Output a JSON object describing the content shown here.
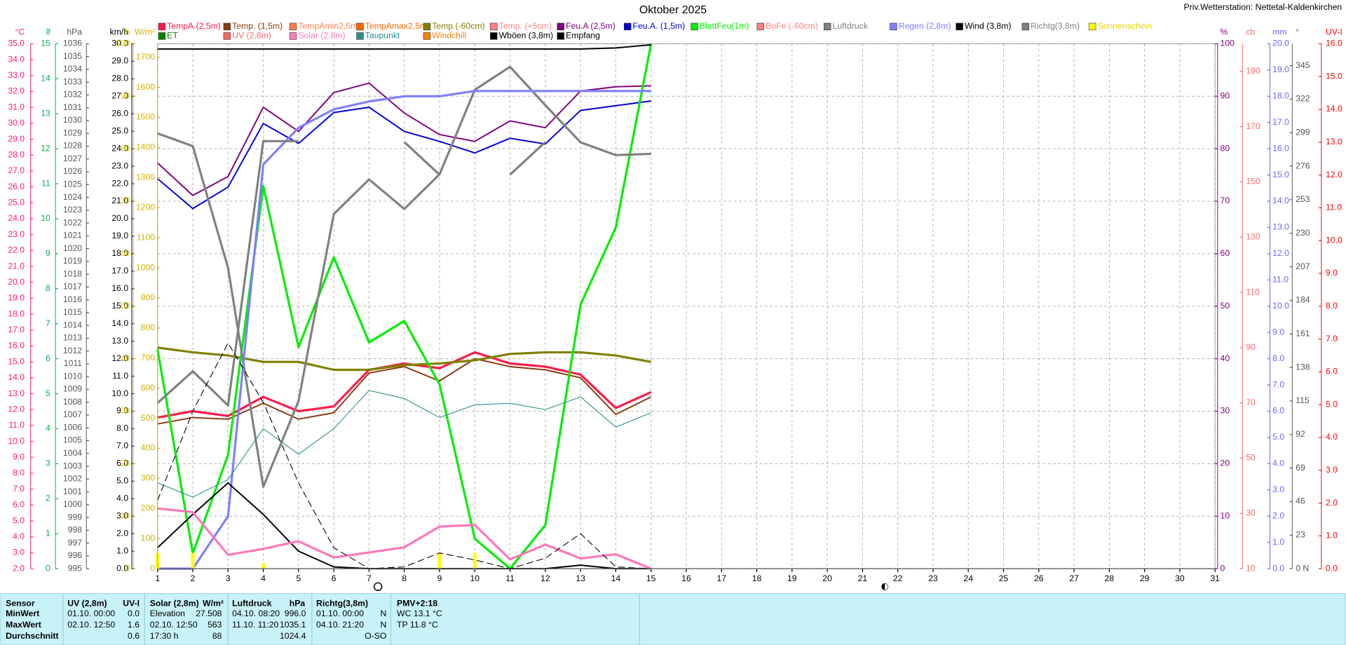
{
  "chart_data": {
    "type": "line",
    "title": "Oktober 2025",
    "station": "Priv.Wetterstation: Nettetal-Kaldenkirchen",
    "x": [
      1,
      2,
      3,
      4,
      5,
      6,
      7,
      8,
      9,
      10,
      11,
      12,
      13,
      14,
      15
    ],
    "xlim": [
      1,
      31
    ],
    "xticks": [
      1,
      2,
      3,
      4,
      5,
      6,
      7,
      8,
      9,
      10,
      11,
      12,
      13,
      14,
      15,
      16,
      17,
      18,
      19,
      20,
      21,
      22,
      23,
      24,
      25,
      26,
      27,
      28,
      29,
      30,
      31
    ],
    "grid": true,
    "axes": [
      {
        "unit": "°C",
        "side": "left",
        "color": "#ff1a75",
        "ylim": [
          2,
          35
        ],
        "ticks": [
          {
            "value": 2,
            "label": "2.0"
          },
          {
            "value": 3,
            "label": "3.0"
          },
          {
            "value": 4,
            "label": "4.0"
          },
          {
            "value": 5,
            "label": "5.0"
          },
          {
            "value": 6,
            "label": "6.0"
          },
          {
            "value": 7,
            "label": "7.0"
          },
          {
            "value": 8,
            "label": "8.0"
          },
          {
            "value": 9,
            "label": "9.0"
          },
          {
            "value": 10,
            "label": "10.0"
          },
          {
            "value": 11,
            "label": "11.0"
          },
          {
            "value": 12,
            "label": "12.0"
          },
          {
            "value": 13,
            "label": "13.0"
          },
          {
            "value": 14,
            "label": "14.0"
          },
          {
            "value": 15,
            "label": "15.0"
          },
          {
            "value": 16,
            "label": "16.0"
          },
          {
            "value": 17,
            "label": "17.0"
          },
          {
            "value": 18,
            "label": "18.0"
          },
          {
            "value": 19,
            "label": "19.0"
          },
          {
            "value": 20,
            "label": "20.0"
          },
          {
            "value": 21,
            "label": "21.0"
          },
          {
            "value": 22,
            "label": "22.0"
          },
          {
            "value": 23,
            "label": "23.0"
          },
          {
            "value": 24,
            "label": "24.0"
          },
          {
            "value": 25,
            "label": "25.0"
          },
          {
            "value": 26,
            "label": "26.0"
          },
          {
            "value": 27,
            "label": "27.0"
          },
          {
            "value": 28,
            "label": "28.0"
          },
          {
            "value": 29,
            "label": "29.0"
          },
          {
            "value": 30,
            "label": "30.0"
          },
          {
            "value": 31,
            "label": "31.0"
          },
          {
            "value": 32,
            "label": "32.0"
          },
          {
            "value": 33,
            "label": "33.0"
          },
          {
            "value": 34,
            "label": "34.0"
          },
          {
            "value": 35,
            "label": "35.0"
          }
        ]
      },
      {
        "unit": "lf",
        "side": "left",
        "color": "#00b050",
        "ylim": [
          0,
          15
        ],
        "ticks": [
          0,
          1,
          2,
          3,
          4,
          5,
          6,
          7,
          8,
          9,
          10,
          11,
          12,
          13,
          14,
          15
        ]
      },
      {
        "unit": "hPa",
        "side": "left",
        "color": "#555555",
        "ylim": [
          995,
          1036
        ],
        "ticks": [
          995,
          996,
          997,
          998,
          999,
          1000,
          1001,
          1002,
          1003,
          1004,
          1005,
          1006,
          1007,
          1008,
          1009,
          1010,
          1011,
          1012,
          1013,
          1014,
          1015,
          1016,
          1017,
          1018,
          1019,
          1020,
          1021,
          1022,
          1023,
          1024,
          1025,
          1026,
          1027,
          1028,
          1029,
          1030,
          1031,
          1032,
          1033,
          1034,
          1035,
          1036
        ]
      },
      {
        "unit": "km/h",
        "side": "left",
        "color": "#000000",
        "ylim": [
          0,
          30
        ],
        "ticks": [
          {
            "value": 0,
            "label": "0.0"
          },
          {
            "value": 1,
            "label": "1.0"
          },
          {
            "value": 2,
            "label": "2.0"
          },
          {
            "value": 3,
            "label": "3.0"
          },
          {
            "value": 4,
            "label": "4.0"
          },
          {
            "value": 5,
            "label": "5.0"
          },
          {
            "value": 6,
            "label": "6.0"
          },
          {
            "value": 7,
            "label": "7.0"
          },
          {
            "value": 8,
            "label": "8.0"
          },
          {
            "value": 9,
            "label": "9.0"
          },
          {
            "value": 10,
            "label": "10.0"
          },
          {
            "value": 11,
            "label": "11.0"
          },
          {
            "value": 12,
            "label": "12.0"
          },
          {
            "value": 13,
            "label": "13.0"
          },
          {
            "value": 14,
            "label": "14.0"
          },
          {
            "value": 15,
            "label": "15.0"
          },
          {
            "value": 16,
            "label": "16.0"
          },
          {
            "value": 17,
            "label": "17.0"
          },
          {
            "value": 18,
            "label": "18.0"
          },
          {
            "value": 19,
            "label": "19.0"
          },
          {
            "value": 20,
            "label": "20.0"
          },
          {
            "value": 21,
            "label": "21.0"
          },
          {
            "value": 22,
            "label": "22.0"
          },
          {
            "value": 23,
            "label": "23.0"
          },
          {
            "value": 24,
            "label": "24.0"
          },
          {
            "value": 25,
            "label": "25.0"
          },
          {
            "value": 26,
            "label": "26.0"
          },
          {
            "value": 27,
            "label": "27.0"
          },
          {
            "value": 28,
            "label": "28.0"
          },
          {
            "value": 29,
            "label": "29.0"
          },
          {
            "value": 30,
            "label": "30.0"
          }
        ]
      },
      {
        "unit": "h",
        "side": "left",
        "color": "#e6d200",
        "ylim": [
          0,
          100
        ],
        "ticks": [
          0,
          10,
          20,
          30,
          40,
          50,
          60,
          70,
          80,
          90,
          100
        ]
      },
      {
        "unit": "W/m²",
        "side": "left",
        "color": "#d4b000",
        "ylim": [
          0,
          1745
        ],
        "ticks": [
          0,
          100,
          200,
          300,
          400,
          500,
          600,
          700,
          800,
          900,
          1000,
          1100,
          1200,
          1300,
          1400,
          1500,
          1600,
          1700
        ]
      },
      {
        "unit": "%",
        "side": "right",
        "color": "#800080",
        "ylim": [
          0,
          100
        ],
        "ticks": [
          0,
          10,
          20,
          30,
          40,
          50,
          60,
          70,
          80,
          90,
          100
        ]
      },
      {
        "unit": "cb",
        "side": "right",
        "color": "#ff6666",
        "ylim": [
          10,
          200
        ],
        "ticks": [
          10,
          30,
          50,
          70,
          90,
          110,
          130,
          150,
          170,
          190
        ]
      },
      {
        "unit": "mm",
        "side": "right",
        "color": "#6666ff",
        "ylim": [
          0,
          20
        ],
        "ticks": [
          {
            "value": 0,
            "label": "0.0"
          },
          {
            "value": 1,
            "label": "1.0"
          },
          {
            "value": 2,
            "label": "2.0"
          },
          {
            "value": 3,
            "label": "3.0"
          },
          {
            "value": 4,
            "label": "4.0"
          },
          {
            "value": 5,
            "label": "5.0"
          },
          {
            "value": 6,
            "label": "6.0"
          },
          {
            "value": 7,
            "label": "7.0"
          },
          {
            "value": 8,
            "label": "8.0"
          },
          {
            "value": 9,
            "label": "9.0"
          },
          {
            "value": 10,
            "label": "10.0"
          },
          {
            "value": 11,
            "label": "11.0"
          },
          {
            "value": 12,
            "label": "12.0"
          },
          {
            "value": 13,
            "label": "13.0"
          },
          {
            "value": 14,
            "label": "14.0"
          },
          {
            "value": 15,
            "label": "15.0"
          },
          {
            "value": 16,
            "label": "16.0"
          },
          {
            "value": 17,
            "label": "17.0"
          },
          {
            "value": 18,
            "label": "18.0"
          },
          {
            "value": 19,
            "label": "19.0"
          },
          {
            "value": 20,
            "label": "20.0"
          }
        ]
      },
      {
        "unit": "°",
        "side": "right",
        "color": "#555555",
        "ylim": [
          0,
          360
        ],
        "ticks": [
          {
            "value": 0,
            "label": "0  N"
          },
          23,
          46,
          69,
          92,
          115,
          138,
          161,
          184,
          207,
          230,
          253,
          276,
          299,
          322,
          345
        ]
      },
      {
        "unit": "UV-I",
        "side": "right",
        "color": "#ff0000",
        "ylim": [
          0,
          16
        ],
        "ticks": [
          {
            "value": 0,
            "label": "0.0"
          },
          {
            "value": 1,
            "label": "1.0"
          },
          {
            "value": 2,
            "label": "2.0"
          },
          {
            "value": 3,
            "label": "3.0"
          },
          {
            "value": 4,
            "label": "4.0"
          },
          {
            "value": 5,
            "label": "5.0"
          },
          {
            "value": 6,
            "label": "6.0"
          },
          {
            "value": 7,
            "label": "7.0"
          },
          {
            "value": 8,
            "label": "8.0"
          },
          {
            "value": 9,
            "label": "9.0"
          },
          {
            "value": 10,
            "label": "10.0"
          },
          {
            "value": 11,
            "label": "11.0"
          },
          {
            "value": 12,
            "label": "12.0"
          },
          {
            "value": 13,
            "label": "13.0"
          },
          {
            "value": 14,
            "label": "14.0"
          },
          {
            "value": 15,
            "label": "15.0"
          },
          {
            "value": 16,
            "label": "16.0"
          }
        ]
      }
    ],
    "series": [
      {
        "name": "TempA.(2,5m)",
        "color": "#ff1a4b",
        "axis": 0,
        "style": "thick",
        "values": [
          11.5,
          11.9,
          11.6,
          12.8,
          11.9,
          12.2,
          14.5,
          14.9,
          14.6,
          15.6,
          14.9,
          14.7,
          14.2,
          12.1,
          13.1
        ]
      },
      {
        "name": "Temp. (1,5m)",
        "color": "#8b3a0e",
        "axis": 0,
        "style": "normal",
        "values": [
          11.1,
          11.5,
          11.4,
          12.4,
          11.4,
          11.8,
          14.3,
          14.7,
          13.8,
          15.2,
          14.7,
          14.5,
          14.0,
          11.7,
          12.8
        ]
      },
      {
        "name": "TempAmin2,5m",
        "color": "#ff7f50"
      },
      {
        "name": "TempAmax2,5m",
        "color": "#ff6600"
      },
      {
        "name": "Temp.(-60cm)",
        "color": "#808000",
        "axis": 0,
        "style": "thick",
        "values": [
          15.9,
          15.6,
          15.4,
          15.0,
          15.0,
          14.5,
          14.5,
          14.8,
          14.9,
          15.1,
          15.5,
          15.6,
          15.6,
          15.4,
          15.0
        ]
      },
      {
        "name": "Temp. (+5cm)",
        "color": "#ff8080"
      },
      {
        "name": "Feu.A (2,5m)",
        "color": "#800080",
        "axis": 6,
        "style": "normal",
        "values": [
          77.3,
          71.1,
          74.7,
          87.9,
          83.3,
          90.7,
          92.5,
          86.8,
          82.7,
          81.4,
          85.3,
          84.0,
          91.0,
          91.8,
          92.0
        ]
      },
      {
        "name": "Feu.A. (1,5m)",
        "color": "#0000dd",
        "axis": 6,
        "style": "normal",
        "values": [
          74.3,
          68.6,
          72.7,
          84.8,
          81.0,
          86.9,
          87.9,
          83.3,
          81.4,
          79.2,
          82.0,
          80.9,
          87.3,
          88.2,
          89.1
        ]
      },
      {
        "name": "BlattFeu(1m)",
        "color": "#00ee00",
        "axis": 6,
        "style": "thick",
        "values": [
          41.8,
          2.9,
          21.7,
          72.9,
          42.2,
          59.3,
          43.1,
          47.2,
          35.1,
          5.7,
          0,
          8.3,
          50.3,
          65.0,
          100
        ]
      },
      {
        "name": "BoFe (-60cm)",
        "color": "#ff8080"
      },
      {
        "name": "Luftdruck",
        "color": "#808080",
        "axis": 2,
        "style": "thick",
        "values": [
          1029.0,
          1028.0,
          1018.5,
          1001.4,
          1008.1,
          1022.7,
          1025.4,
          1023.1,
          1025.8,
          1032.4,
          1034.2,
          1031.2,
          1028.3,
          1027.3,
          1027.4
        ]
      },
      {
        "name": "Regen (2,8m)",
        "color": "#7f7fff",
        "axis": 8,
        "style": "thick",
        "values": [
          0,
          0,
          2.0,
          15.4,
          16.8,
          17.5,
          17.8,
          18.0,
          18.0,
          18.2,
          18.2,
          18.2,
          18.2,
          18.2,
          18.2
        ]
      },
      {
        "name": "Wind (3,8m)",
        "color": "#000000",
        "axis": 3,
        "style": "normal",
        "values": [
          1.2,
          3.1,
          4.9,
          3.1,
          1.0,
          0.1,
          0,
          0,
          0,
          0,
          0,
          0,
          0.2,
          0,
          0
        ]
      },
      {
        "name": "Richtg(3,8m)",
        "color": "#808080",
        "axis": 9,
        "style": "thick",
        "values": [
          113.6,
          135.4,
          111.9,
          293.2,
          293.2,
          null,
          null,
          292.6,
          270.2,
          null,
          270.2,
          292.6,
          null,
          null,
          null
        ]
      },
      {
        "name": "Sonnenschein",
        "color": "#ffff00",
        "axis": 4,
        "style": "bar",
        "values": [
          3,
          3,
          0,
          1,
          0,
          0,
          0,
          0,
          3,
          3,
          0,
          0,
          0,
          0,
          0
        ]
      },
      {
        "name": "ET",
        "color": "#008000"
      },
      {
        "name": "UV (2,8m)",
        "color": "#ff6666"
      },
      {
        "name": "Solar (2,8m)",
        "color": "#ff77bb",
        "axis": 5,
        "style": "thick",
        "values": [
          200,
          188,
          46,
          66,
          91,
          37,
          54,
          71,
          140,
          145,
          31,
          80,
          34,
          48,
          0
        ]
      },
      {
        "name": "Taupunkt",
        "color": "#2f8f8f",
        "axis": 0,
        "style": "thin",
        "values": [
          7.4,
          6.5,
          7.6,
          10.8,
          9.2,
          10.8,
          13.2,
          12.7,
          11.5,
          12.3,
          12.4,
          12.0,
          12.8,
          10.9,
          11.8
        ]
      },
      {
        "name": "Windchill",
        "color": "#ff8000"
      },
      {
        "name": "Wböen (3,8m)",
        "color": "#000000",
        "axis": 3,
        "style": "dashed",
        "values": [
          3.9,
          9.0,
          12.9,
          9.5,
          4.9,
          1.2,
          0,
          0.1,
          0.9,
          0.5,
          0,
          0.6,
          2.0,
          0.1,
          0
        ]
      },
      {
        "name": "Empfang",
        "color": "#000000",
        "axis": 6,
        "style": "normal",
        "values": [
          99,
          99,
          99,
          99,
          99,
          99,
          99,
          99,
          99,
          99,
          99,
          99,
          99,
          99.2,
          99.8
        ]
      }
    ]
  },
  "stats": {
    "labels": [
      "Sensor",
      "MinWert",
      "MaxWert",
      "Durchschnitt"
    ],
    "uv": {
      "title": "UV (2,8m)",
      "unit": "UV-I",
      "min_time": "01.10.  00:00",
      "min": "0.0",
      "max_time": "02.10.  12:50",
      "max": "1.6",
      "avg": "0.6"
    },
    "solar": {
      "title": "Solar (2,8m)",
      "unit": "W/m²",
      "min_time": "Elevation",
      "min": "27.508",
      "max_time": "02.10.  12:50",
      "max": "563",
      "avg_time": "17:30 h",
      "avg": "88"
    },
    "pressure": {
      "title": "Luftdruck",
      "unit": "hPa",
      "min_time": "04.10.  08:20",
      "min": "996.0",
      "max_time": "11.10.  11:20",
      "max": "1035.1",
      "avg": "1024.4"
    },
    "direction": {
      "title": "Richtg(3,8m)",
      "min_time": "01.10.  00:00",
      "min": "N",
      "max_time": "04.10.  21:20",
      "max": "N",
      "avg": "O-SO"
    },
    "pmv": {
      "title": "PMV+2:18",
      "wc": "WC 13.1 °C",
      "tp": "TP 11.8 °C"
    }
  }
}
